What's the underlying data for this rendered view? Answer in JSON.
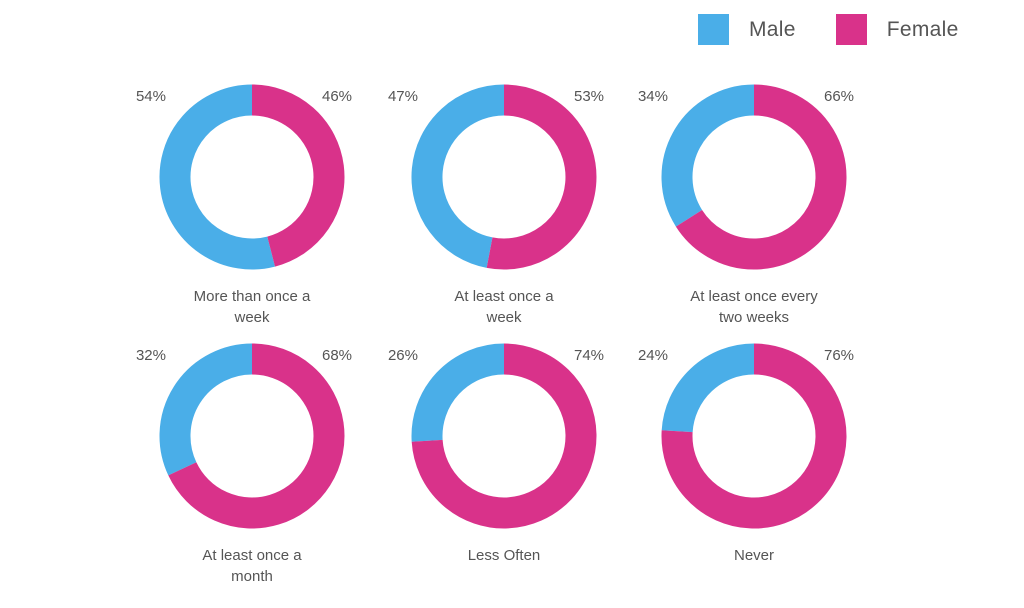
{
  "colors": {
    "male": "#4aaee8",
    "female": "#d9328a"
  },
  "legend": [
    {
      "label": "Male",
      "color": "#4aaee8"
    },
    {
      "label": "Female",
      "color": "#d9328a"
    }
  ],
  "chart_data": {
    "type": "donut",
    "series_names": [
      "Male",
      "Female"
    ],
    "categories": [
      "More than once a week",
      "At least once a week",
      "At least once every two weeks",
      "At least once a month",
      "Less Often",
      "Never"
    ],
    "category_lines": [
      [
        "More than once a",
        "week"
      ],
      [
        "At least once a",
        "week"
      ],
      [
        "At least once every",
        "two weeks"
      ],
      [
        "At least once a",
        "month"
      ],
      [
        "Less Often"
      ],
      [
        "Never"
      ]
    ],
    "male": [
      54,
      47,
      34,
      32,
      26,
      24
    ],
    "female": [
      46,
      53,
      66,
      68,
      74,
      76
    ],
    "male_labels": [
      "54%",
      "47%",
      "34%",
      "32%",
      "26%",
      "24%"
    ],
    "female_labels": [
      "46%",
      "53%",
      "66%",
      "68%",
      "74%",
      "76%"
    ],
    "legend_position": "top-right"
  }
}
